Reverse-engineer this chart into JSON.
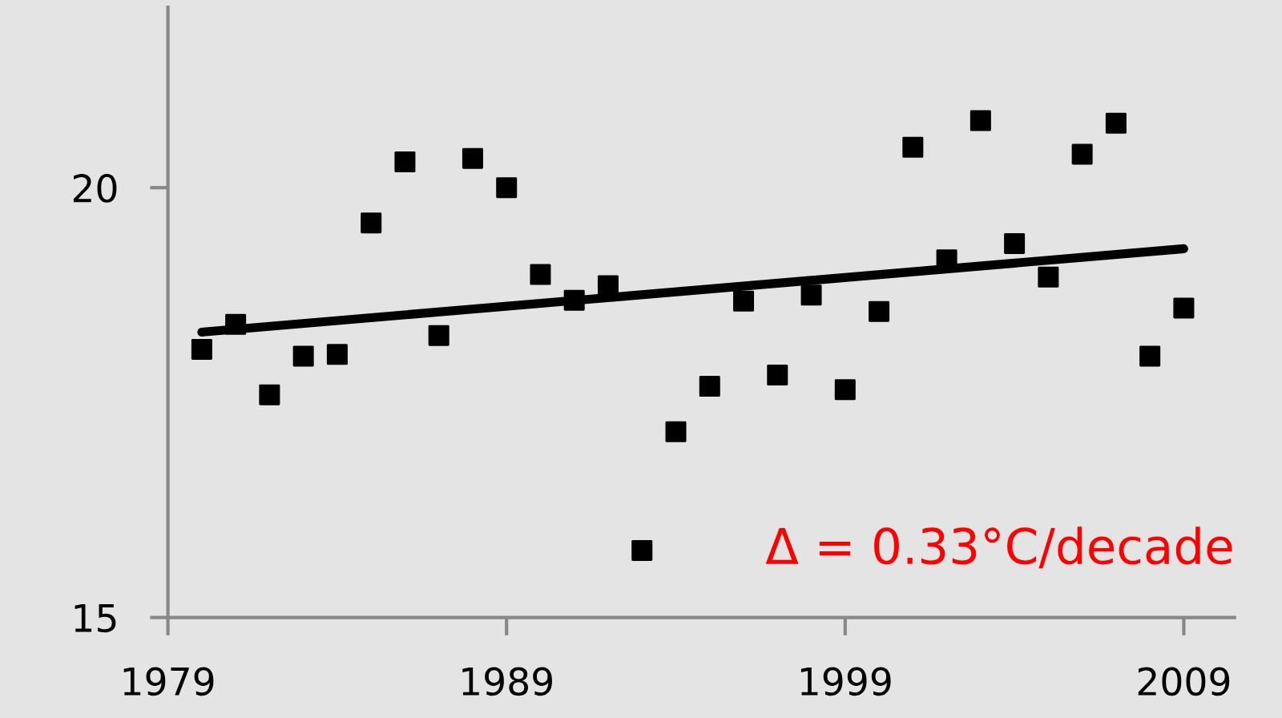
{
  "chart_data": {
    "type": "scatter",
    "x": [
      1980,
      1981,
      1982,
      1983,
      1984,
      1985,
      1986,
      1987,
      1988,
      1989,
      1990,
      1991,
      1992,
      1993,
      1994,
      1995,
      1996,
      1997,
      1998,
      1999,
      2000,
      2001,
      2002,
      2003,
      2004,
      2005,
      2006,
      2007,
      2008,
      2009
    ],
    "series": [
      {
        "color": "#000000",
        "marker": "square",
        "values": [
          18.12,
          18.41,
          17.59,
          18.04,
          18.06,
          19.59,
          20.3,
          18.28,
          20.34,
          20.0,
          18.99,
          18.69,
          18.86,
          15.78,
          17.16,
          17.69,
          18.68,
          17.82,
          18.75,
          17.65,
          18.56,
          20.47,
          19.16,
          20.78,
          19.35,
          18.96,
          20.39,
          20.75,
          18.04,
          18.6
        ]
      },
      {
        "type": "line",
        "color": "#000000",
        "marker": "none",
        "line_style": "solid",
        "x": [
          1980,
          2009
        ],
        "values": [
          18.32,
          19.29
        ]
      }
    ],
    "xlim": [
      1979,
      2010.5
    ],
    "xticks": [
      1979,
      1989,
      1999,
      2009
    ],
    "ylim": [
      15,
      22.1
    ],
    "yticks": [
      15,
      20
    ],
    "grid": false,
    "legend": false,
    "annotations": [
      "Δ = 0.33°C/decade"
    ]
  }
}
